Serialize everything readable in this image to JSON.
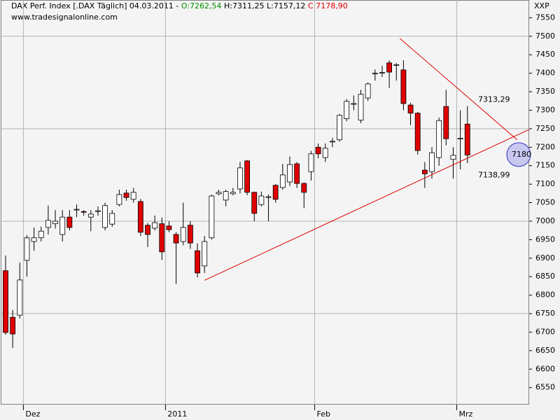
{
  "chart_data": {
    "type": "candlestick",
    "title": "DAX Perf. Index [.DAX  Täglich] 04.03.2011 -",
    "header_open": "O:7262,54",
    "header_high_low": "H:7311,25 L:7157,12",
    "header_close": "C:7178,90",
    "subtitle": "www.tradesignalonline.com",
    "y_axis_label": "XXP",
    "categories": [
      null,
      null,
      null,
      "Dez",
      null,
      null,
      null,
      null,
      null,
      null,
      null,
      null,
      null,
      null,
      null,
      null,
      null,
      null,
      null,
      null,
      null,
      null,
      null,
      "2011",
      null,
      null,
      null,
      null,
      null,
      null,
      null,
      null,
      null,
      null,
      null,
      null,
      null,
      null,
      null,
      null,
      null,
      null,
      null,
      null,
      "Feb",
      null,
      null,
      null,
      null,
      null,
      null,
      null,
      null,
      null,
      null,
      null,
      null,
      null,
      null,
      null,
      null,
      null,
      null,
      null,
      "Mrz",
      null
    ],
    "open": [
      6866,
      6740,
      6746,
      6894,
      6945,
      6955,
      6983,
      6993,
      6964,
      7011,
      7030,
      7026,
      7011,
      7026,
      6983,
      6992,
      7045,
      7076,
      7059,
      7053,
      6989,
      6981,
      6993,
      6987,
      6964,
      6945,
      6989,
      6920,
      6879,
      6955,
      7074,
      7057,
      7074,
      7087,
      7163,
      7078,
      7045,
      7064,
      7097,
      7091,
      7106,
      7155,
      7102,
      7134,
      7200,
      7172,
      7214,
      7220,
      7277,
      7316,
      7273,
      7333,
      7398,
      7400,
      7428,
      7421,
      7409,
      7314,
      7292,
      7138,
      7134,
      7172,
      7310,
      7167,
      7222,
      7262.54
    ],
    "high": [
      6907,
      6760,
      6888,
      6962,
      6983,
      6985,
      7042,
      7030,
      7030,
      7030,
      7045,
      7030,
      7030,
      7040,
      7050,
      7030,
      7085,
      7085,
      7090,
      7060,
      6995,
      7015,
      7010,
      7000,
      6970,
      7050,
      7000,
      6940,
      6960,
      7072,
      7085,
      7085,
      7090,
      7160,
      7165,
      7080,
      7080,
      7072,
      7100,
      7155,
      7175,
      7160,
      7105,
      7190,
      7210,
      7210,
      7225,
      7290,
      7330,
      7340,
      7355,
      7375,
      7410,
      7420,
      7435,
      7428,
      7435,
      7320,
      7295,
      7160,
      7200,
      7280,
      7355,
      7200,
      7300,
      7311.25
    ],
    "low": [
      6693,
      6657,
      6737,
      6850,
      6920,
      6945,
      6964,
      6980,
      6945,
      6975,
      7011,
      7015,
      6973,
      7015,
      6975,
      6985,
      7040,
      7055,
      7050,
      6960,
      6930,
      6975,
      6895,
      6970,
      6830,
      6935,
      6925,
      6848,
      6860,
      6950,
      7070,
      7040,
      7070,
      7075,
      7070,
      7000,
      7040,
      7000,
      7050,
      7085,
      7095,
      7090,
      7035,
      7110,
      7170,
      7160,
      7200,
      7215,
      7270,
      7300,
      7265,
      7325,
      7380,
      7390,
      7360,
      7380,
      7300,
      7260,
      7180,
      7090,
      7115,
      7150,
      7205,
      7115,
      7140,
      7157.12
    ],
    "close": [
      6699,
      6695,
      6841,
      6955,
      6955,
      6973,
      7002,
      7000,
      7011,
      6983,
      7032,
      7024,
      7019,
      7028,
      7042,
      7021,
      7072,
      7064,
      7078,
      6970,
      6964,
      6996,
      6917,
      6977,
      6941,
      6983,
      6941,
      6860,
      6945,
      7068,
      7078,
      7080,
      7078,
      7144,
      7078,
      7021,
      7068,
      7066,
      7059,
      7125,
      7153,
      7102,
      7078,
      7182,
      7182,
      7197,
      7216,
      7286,
      7324,
      7318,
      7343,
      7371,
      7400,
      7402,
      7403,
      7423,
      7318,
      7292,
      7191,
      7128,
      7185,
      7272,
      7223,
      7178,
      7224,
      7178.9
    ],
    "up_color": "#ffffff",
    "down_color": "#e00000",
    "ylim": [
      6504,
      7598
    ],
    "yticks": [
      6550,
      6600,
      6650,
      6700,
      6750,
      6800,
      6850,
      6900,
      6950,
      7000,
      7050,
      7100,
      7150,
      7200,
      7250,
      7300,
      7350,
      7400,
      7450,
      7500,
      7550
    ],
    "ygrid": [
      6750,
      7000,
      7250,
      7500
    ],
    "trendlines": [
      {
        "color": "#e00000",
        "points": [
          [
            28,
            6840
          ],
          [
            73.7,
            7248
          ]
        ]
      },
      {
        "color": "#e00000",
        "points": [
          [
            55.5,
            7494
          ],
          [
            72,
            7220
          ]
        ]
      }
    ],
    "level_labels": [
      {
        "value": 7313.29,
        "label": "7313,29",
        "color": "#e00000"
      },
      {
        "value": 7138.99,
        "label": "7138,99",
        "color": "#e00000"
      }
    ],
    "price_marker": {
      "value": 7180,
      "label": "7180",
      "color": "#3030c0"
    }
  }
}
